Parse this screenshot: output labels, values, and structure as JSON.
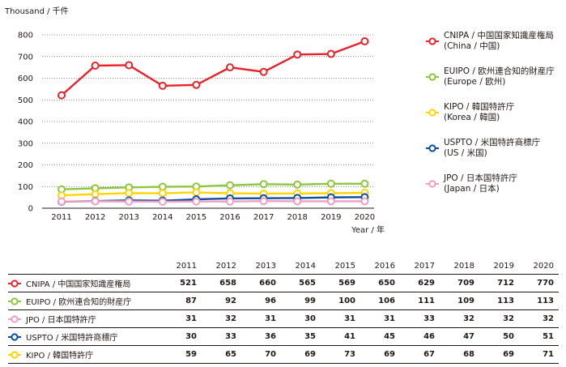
{
  "chart_data": {
    "type": "line",
    "ylabel": "Thousand / 千件",
    "xlabel": "Year / 年",
    "ylim": [
      0,
      800
    ],
    "yticks": [
      0,
      100,
      200,
      300,
      400,
      500,
      600,
      700,
      800
    ],
    "x": [
      "2011",
      "2012",
      "2013",
      "2014",
      "2015",
      "2016",
      "2017",
      "2018",
      "2019",
      "2020"
    ],
    "grid": "horizontal dotted",
    "legend_position": "right",
    "series": [
      {
        "name": "CNIPA / 中国国家知識産権局",
        "sub": "(China / 中国)",
        "color": "#e8232a",
        "values": [
          521,
          658,
          660,
          565,
          569,
          650,
          629,
          709,
          712,
          770
        ]
      },
      {
        "name": "EUIPO / 欧州連合知的財産庁",
        "sub": "(Europe / 欧州)",
        "color": "#8dc63f",
        "values": [
          87,
          92,
          96,
          99,
          100,
          106,
          111,
          109,
          113,
          113
        ]
      },
      {
        "name": "KIPO / 韓国特許庁",
        "sub": "(Korea / 韓国)",
        "color": "#ffd400",
        "values": [
          59,
          65,
          70,
          69,
          73,
          69,
          67,
          68,
          69,
          71
        ]
      },
      {
        "name": "USPTO / 米国特許商標庁",
        "sub": "(US / 米国)",
        "color": "#0b4ea2",
        "values": [
          30,
          33,
          36,
          35,
          41,
          45,
          46,
          47,
          50,
          51
        ]
      },
      {
        "name": "JPO / 日本国特許庁",
        "sub": "(Japan / 日本)",
        "color": "#f19ec2",
        "values": [
          31,
          32,
          31,
          30,
          31,
          31,
          33,
          32,
          32,
          32
        ]
      }
    ],
    "table_order": [
      "CNIPA / 中国国家知識産権局",
      "EUIPO / 欧州連合知的財産庁",
      "JPO / 日本国特許庁",
      "USPTO / 米国特許商標庁",
      "KIPO / 韓国特許庁"
    ]
  }
}
